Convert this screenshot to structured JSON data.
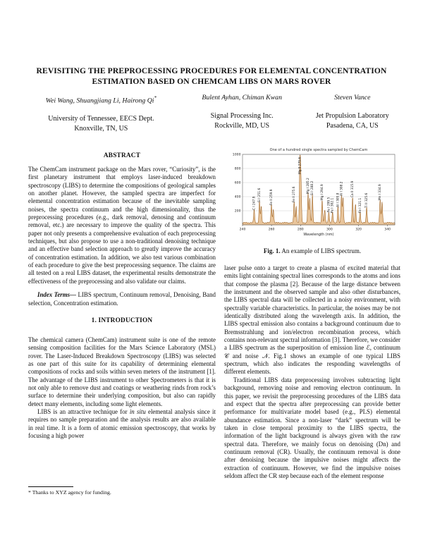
{
  "paper": {
    "title_line1": "REVISITING THE PREPROCESSING PROCEDURES FOR ELEMENTAL CONCENTRATION",
    "title_line2": "ESTIMATION BASED ON CHEMCAM LIBS ON MARS ROVER",
    "authors": [
      {
        "names": "Wei Wang, Shuangjiang Li, Hairong Qi",
        "mark": "*",
        "affil1": "University of Tennessee, EECS Dept.",
        "affil2": "Knoxville, TN, US"
      },
      {
        "names": "Bulent Ayhan, Chiman Kwan",
        "mark": "",
        "affil1": "Signal Processing Inc.",
        "affil2": "Rockville, MD, US"
      },
      {
        "names": "Steven Vance",
        "mark": "",
        "affil1": "Jet Propulsion Laboratory",
        "affil2": "Pasadena, CA, US"
      }
    ],
    "abstract": {
      "heading": "ABSTRACT",
      "body": "The ChemCam instrument package on the Mars rover, “Curiosity”, is the first planetary instrument that employs laser-induced breakdown spectroscopy (LIBS) to determine the compositions of geological samples on another planet. However, the sampled spectra are imperfect for elemental concentration estimation because of the inevitable sampling noises, the spectra continuum and the high dimensionality, thus the preprocessing procedures (e.g., dark removal, denosing and continuum removal, etc.) are necessary to improve the quality of the spectra. This paper not only presents a comprehensive evaluation of each preprocessing techniques, but also propose to use a non-traditional denoising technique and an effective band selection approach to greatly improve the accuracy of concentration estimation. In addition, we also test various combination of each procedure to give the best preprocessing sequence. The claims are all tested on a real LIBS dataset, the experimental results demonstrate the effectiveness of the preprocessing and also validate our claims."
    },
    "index_terms": {
      "label": "Index Terms—",
      "body": " LIBS spectrum, Continuum removal, Denoising, Band selection, Concentration estimation."
    },
    "intro": {
      "heading": "1. INTRODUCTION",
      "p1": "The chemical camera (ChemCam) instrument suite is one of the remote sensing composition facilities for the Mars Science Laboratory (MSL) rover. The Laser-Induced Breakdown Spectroscopy (LIBS) was selected as one part of this suite for its capability of determining elemental compositions of rocks and soils within seven meters of the instrument [1]. The advantage of the LIBS instrument to other Spectrometers is that it is not only able to remove dust and coatings or weathering rinds from rock’s surface to determine their underlying composition, but also can rapidly detect many elements, including some light elements.",
      "p2_pre": "LIBS is an attractive technique for ",
      "p2_italic": "in situ",
      "p2_post": " elemental analysis since it requires no sample preparation and the analysis results are also available in real time. It is a form of atomic emission spectroscopy, that works by focusing a high power"
    },
    "footnote": "* Thanks to XYZ agency for funding.",
    "figure": {
      "caption_label": "Fig. 1.",
      "caption_text": " An example of LIBS spectrum."
    },
    "right_column": {
      "p1": "laser pulse onto a target to create a plasma of excited material that emits light containing spectral lines corresponds to the atoms and ions that compose the plasma [2]. Because of the large distance between the instrument and the observed sample and also other disturbances, the LIBS spectral data will be collected in a noisy environment, with spectrally variable characteristics. In particular, the noises may be not identically distributed along the wavelength axis. In addition, the LIBS spectral emission also contains a background continuum due to Bremsstrahlung and ion/electron recombination process, which contains non-relevant spectral information [3]. Therefore, we consider a LIBS spectrum as the superposition of emission line ℰ, continuum 𝒞 and noise 𝒩. Fig.1 shows an example of one typical LIBS spectrum, which also indicates the responding wavelengths of different elements.",
      "p2": "Traditional LIBS data preprocessing involves subtracting light background, removing noise and removing electron continuum. In this paper, we revisit the preprocessing procedures of the LIBS data and expect that the spectra after preprocessing can provide better performance for multivariate model based (e.g., PLS) elemental abundance estimation. Since a non-laser “dark” spectrum will be taken in close temporal proximity to the LIBS spectra, the information of the light background is always given with the raw spectral data. Therefore, we mainly focus on denoising (Dn) and continuum removal (CR). Usually, the continuum removal is done after denoising because the impulsive noises might affects the extraction of continuum. However, we find the impulsive noises seldom affect the CR step because each of the element response"
    }
  },
  "chart_data": {
    "type": "line",
    "title": "One of a hundred single spectra sampled by ChemCam",
    "xlabel": "Wavelength (nm)",
    "ylabel": "",
    "xlim": [
      240,
      345
    ],
    "ylim": [
      0,
      1000
    ],
    "x_ticks": [
      240,
      260,
      280,
      300,
      320,
      340
    ],
    "y_ticks": [
      200,
      400,
      600,
      800,
      1000
    ],
    "grid": true,
    "line_color": "#9c5f1e",
    "fill_color": "#e8c49a",
    "peaks": [
      {
        "wavelength": 248.0,
        "intensity": 190,
        "label": "C I 247.9"
      },
      {
        "wavelength": 251.7,
        "intensity": 300,
        "label": "Si I 251.6"
      },
      {
        "wavelength": 252.9,
        "intensity": 230,
        "label": ""
      },
      {
        "wavelength": 259.9,
        "intensity": 260,
        "label": "Fe II 259.9"
      },
      {
        "wavelength": 261.2,
        "intensity": 200,
        "label": ""
      },
      {
        "wavelength": 275.6,
        "intensity": 300,
        "label": "Fe II 275.6"
      },
      {
        "wavelength": 277.0,
        "intensity": 240,
        "label": ""
      },
      {
        "wavelength": 279.6,
        "intensity": 940,
        "label": "Mg II 279.6"
      },
      {
        "wavelength": 280.3,
        "intensity": 560,
        "label": ""
      },
      {
        "wavelength": 285.2,
        "intensity": 420,
        "label": "Mg I 285.2"
      },
      {
        "wavelength": 286.4,
        "intensity": 350,
        "label": ""
      },
      {
        "wavelength": 288.2,
        "intensity": 400,
        "label": "Si I 288.2"
      },
      {
        "wavelength": 294.9,
        "intensity": 330,
        "label": "Mg I 294.9"
      },
      {
        "wavelength": 296.7,
        "intensity": 180,
        "label": ""
      },
      {
        "wavelength": 299.5,
        "intensity": 160,
        "label": "Fe I 299.5"
      },
      {
        "wavelength": 302.1,
        "intensity": 150,
        "label": "Fe I 302.1"
      },
      {
        "wavelength": 305.8,
        "intensity": 230,
        "label": "Al I 305.8"
      },
      {
        "wavelength": 308.2,
        "intensity": 390,
        "label": "Al I 308.2"
      },
      {
        "wavelength": 309.3,
        "intensity": 360,
        "label": ""
      },
      {
        "wavelength": 315.9,
        "intensity": 370,
        "label": "Ca II 315.9"
      },
      {
        "wavelength": 317.9,
        "intensity": 260,
        "label": ""
      },
      {
        "wavelength": 321.1,
        "intensity": 150,
        "label": "Fe I 321.1"
      },
      {
        "wavelength": 325.6,
        "intensity": 220,
        "label": "Ti II 325.6"
      },
      {
        "wavelength": 334.9,
        "intensity": 330,
        "label": "Mn I 334.9"
      },
      {
        "wavelength": 336.2,
        "intensity": 300,
        "label": ""
      }
    ]
  }
}
